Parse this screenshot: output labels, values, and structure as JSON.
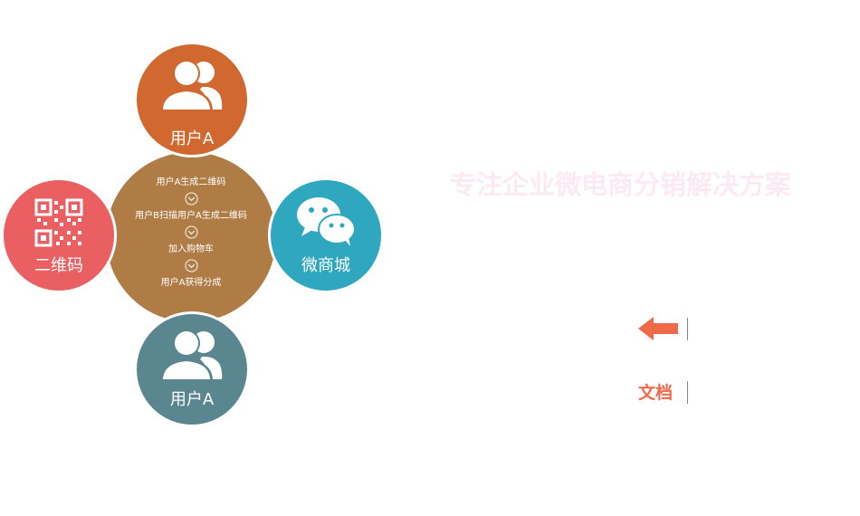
{
  "diagram": {
    "center_steps": [
      "用户A生成二维码",
      "用户B扫描用户A生成二维码",
      "加入购物车",
      "用户A获得分成"
    ],
    "nodes": {
      "top": {
        "label": "用户A",
        "icon": "users-icon",
        "color": "#D0682F"
      },
      "left": {
        "label": "二维码",
        "icon": "qr-code-icon",
        "color": "#EA5F61"
      },
      "right": {
        "label": "微商城",
        "icon": "wechat-icon",
        "color": "#2EA7BF"
      },
      "bottom": {
        "label": "用户A",
        "icon": "users-icon",
        "color": "#5A8690"
      }
    },
    "center_color": "#B07C45"
  },
  "right_panel": {
    "slogan": "专注企业微电商分销解决方案",
    "back_icon": "left-arrow-icon",
    "doc_label": "文档"
  }
}
